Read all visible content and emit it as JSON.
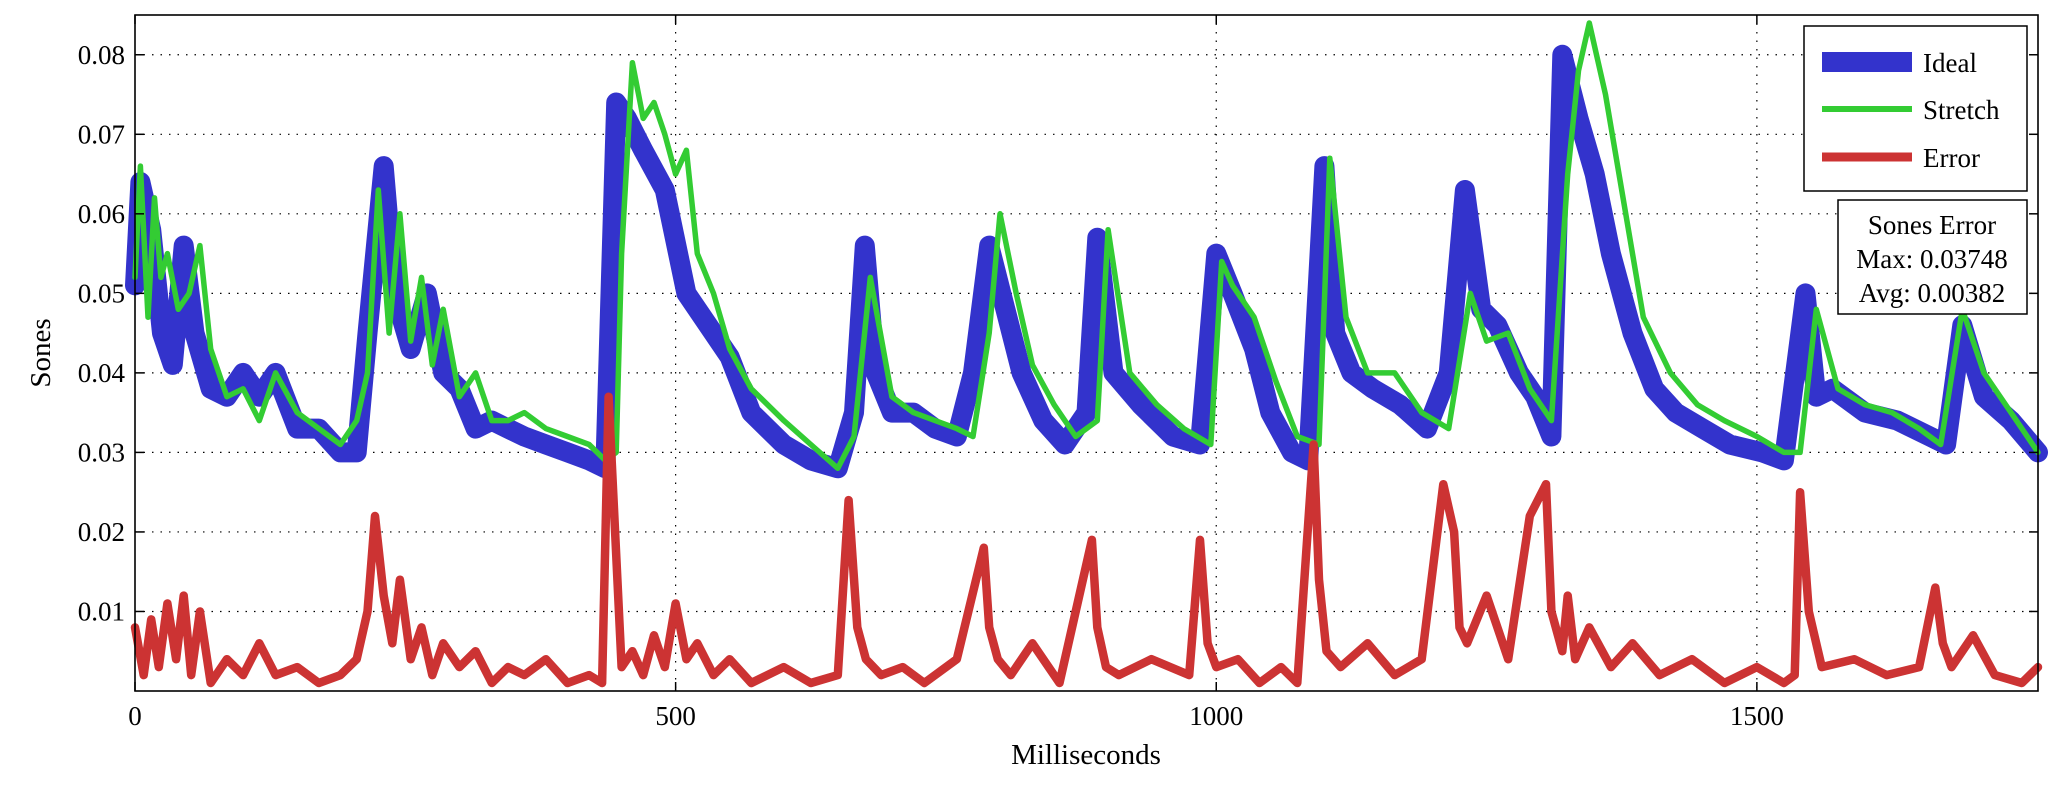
{
  "chart_data": {
    "type": "line",
    "xlabel": "Milliseconds",
    "ylabel": "Sones",
    "xlim": [
      0,
      1760
    ],
    "ylim": [
      0,
      0.085
    ],
    "x_ticks": [
      0,
      500,
      1000,
      1500
    ],
    "x_tick_labels": [
      "0",
      "500",
      "1000",
      "1500"
    ],
    "y_ticks": [
      0.01,
      0.02,
      0.03,
      0.04,
      0.05,
      0.06,
      0.07,
      0.08
    ],
    "y_tick_labels": [
      "0.01",
      "0.02",
      "0.03",
      "0.04",
      "0.05",
      "0.06",
      "0.07",
      "0.08"
    ],
    "grid": true,
    "legend_position": "top-right",
    "series": [
      {
        "name": "Ideal",
        "color": "#3333cc",
        "x": [
          0,
          5,
          15,
          25,
          35,
          45,
          55,
          70,
          85,
          100,
          115,
          130,
          150,
          170,
          190,
          205,
          215,
          230,
          240,
          255,
          270,
          285,
          300,
          315,
          330,
          345,
          360,
          380,
          400,
          420,
          435,
          445,
          455,
          470,
          490,
          510,
          530,
          550,
          570,
          600,
          625,
          650,
          665,
          675,
          685,
          700,
          720,
          740,
          760,
          775,
          790,
          805,
          820,
          840,
          860,
          880,
          890,
          905,
          930,
          960,
          985,
          1000,
          1015,
          1035,
          1050,
          1070,
          1085,
          1100,
          1110,
          1125,
          1145,
          1170,
          1195,
          1215,
          1230,
          1245,
          1260,
          1280,
          1295,
          1310,
          1320,
          1335,
          1350,
          1365,
          1385,
          1405,
          1425,
          1450,
          1475,
          1505,
          1525,
          1545,
          1555,
          1570,
          1600,
          1630,
          1660,
          1675,
          1690,
          1710,
          1735,
          1760
        ],
        "y": [
          0.051,
          0.064,
          0.058,
          0.045,
          0.041,
          0.056,
          0.045,
          0.038,
          0.037,
          0.04,
          0.037,
          0.04,
          0.033,
          0.033,
          0.03,
          0.03,
          0.045,
          0.066,
          0.05,
          0.043,
          0.05,
          0.04,
          0.038,
          0.033,
          0.034,
          0.033,
          0.032,
          0.031,
          0.03,
          0.029,
          0.028,
          0.074,
          0.072,
          0.068,
          0.063,
          0.05,
          0.046,
          0.042,
          0.035,
          0.031,
          0.029,
          0.028,
          0.035,
          0.056,
          0.04,
          0.035,
          0.035,
          0.033,
          0.032,
          0.04,
          0.056,
          0.048,
          0.04,
          0.034,
          0.031,
          0.035,
          0.057,
          0.04,
          0.036,
          0.032,
          0.031,
          0.055,
          0.05,
          0.043,
          0.035,
          0.03,
          0.029,
          0.066,
          0.045,
          0.04,
          0.038,
          0.036,
          0.033,
          0.04,
          0.063,
          0.048,
          0.046,
          0.04,
          0.037,
          0.032,
          0.08,
          0.072,
          0.065,
          0.055,
          0.045,
          0.038,
          0.035,
          0.033,
          0.031,
          0.03,
          0.029,
          0.05,
          0.037,
          0.038,
          0.035,
          0.034,
          0.032,
          0.031,
          0.046,
          0.037,
          0.034,
          0.03
        ]
      },
      {
        "name": "Stretch",
        "color": "#33cc33",
        "x": [
          0,
          5,
          12,
          18,
          24,
          30,
          40,
          50,
          60,
          70,
          85,
          100,
          115,
          130,
          150,
          170,
          190,
          205,
          215,
          225,
          235,
          245,
          255,
          265,
          275,
          285,
          300,
          315,
          330,
          345,
          360,
          380,
          400,
          420,
          435,
          445,
          450,
          460,
          470,
          480,
          490,
          500,
          510,
          520,
          535,
          550,
          570,
          600,
          625,
          650,
          665,
          680,
          700,
          720,
          740,
          760,
          775,
          790,
          800,
          815,
          830,
          850,
          870,
          890,
          900,
          920,
          945,
          970,
          995,
          1005,
          1015,
          1035,
          1055,
          1075,
          1095,
          1105,
          1120,
          1140,
          1165,
          1190,
          1215,
          1235,
          1250,
          1270,
          1290,
          1310,
          1325,
          1335,
          1345,
          1360,
          1375,
          1395,
          1420,
          1445,
          1470,
          1500,
          1525,
          1540,
          1555,
          1575,
          1600,
          1625,
          1650,
          1670,
          1690,
          1710,
          1735,
          1760
        ],
        "y": [
          0.052,
          0.066,
          0.047,
          0.062,
          0.052,
          0.055,
          0.048,
          0.05,
          0.056,
          0.043,
          0.037,
          0.038,
          0.034,
          0.04,
          0.035,
          0.033,
          0.031,
          0.034,
          0.04,
          0.063,
          0.045,
          0.06,
          0.044,
          0.052,
          0.041,
          0.048,
          0.037,
          0.04,
          0.034,
          0.034,
          0.035,
          0.033,
          0.032,
          0.031,
          0.029,
          0.03,
          0.055,
          0.079,
          0.072,
          0.074,
          0.07,
          0.065,
          0.068,
          0.055,
          0.05,
          0.043,
          0.038,
          0.034,
          0.031,
          0.028,
          0.032,
          0.052,
          0.037,
          0.035,
          0.034,
          0.033,
          0.032,
          0.045,
          0.06,
          0.05,
          0.041,
          0.036,
          0.032,
          0.034,
          0.058,
          0.04,
          0.036,
          0.033,
          0.031,
          0.054,
          0.051,
          0.047,
          0.039,
          0.032,
          0.031,
          0.067,
          0.047,
          0.04,
          0.04,
          0.035,
          0.033,
          0.05,
          0.044,
          0.045,
          0.038,
          0.034,
          0.065,
          0.078,
          0.084,
          0.075,
          0.063,
          0.047,
          0.04,
          0.036,
          0.034,
          0.032,
          0.03,
          0.03,
          0.048,
          0.038,
          0.036,
          0.035,
          0.033,
          0.031,
          0.048,
          0.04,
          0.035,
          0.03
        ]
      },
      {
        "name": "Error",
        "color": "#cc3333",
        "x": [
          0,
          8,
          15,
          22,
          30,
          38,
          45,
          52,
          60,
          70,
          85,
          100,
          115,
          130,
          150,
          170,
          190,
          205,
          215,
          222,
          230,
          238,
          245,
          255,
          265,
          275,
          285,
          300,
          315,
          330,
          345,
          360,
          380,
          400,
          420,
          432,
          438,
          444,
          450,
          460,
          470,
          480,
          490,
          500,
          510,
          520,
          535,
          550,
          570,
          600,
          625,
          650,
          660,
          668,
          676,
          690,
          710,
          730,
          760,
          785,
          790,
          798,
          810,
          830,
          855,
          885,
          890,
          898,
          910,
          940,
          975,
          985,
          992,
          1000,
          1020,
          1040,
          1060,
          1075,
          1090,
          1095,
          1102,
          1115,
          1140,
          1165,
          1190,
          1210,
          1220,
          1225,
          1232,
          1250,
          1270,
          1290,
          1305,
          1310,
          1320,
          1325,
          1332,
          1345,
          1365,
          1385,
          1410,
          1440,
          1470,
          1500,
          1525,
          1535,
          1540,
          1548,
          1560,
          1590,
          1620,
          1650,
          1665,
          1672,
          1680,
          1700,
          1720,
          1745,
          1760
        ],
        "y": [
          0.008,
          0.002,
          0.009,
          0.003,
          0.011,
          0.004,
          0.012,
          0.002,
          0.01,
          0.001,
          0.004,
          0.002,
          0.006,
          0.002,
          0.003,
          0.001,
          0.002,
          0.004,
          0.01,
          0.022,
          0.012,
          0.006,
          0.014,
          0.004,
          0.008,
          0.002,
          0.006,
          0.003,
          0.005,
          0.001,
          0.003,
          0.002,
          0.004,
          0.001,
          0.002,
          0.001,
          0.037,
          0.02,
          0.003,
          0.005,
          0.002,
          0.007,
          0.003,
          0.011,
          0.004,
          0.006,
          0.002,
          0.004,
          0.001,
          0.003,
          0.001,
          0.002,
          0.024,
          0.008,
          0.004,
          0.002,
          0.003,
          0.001,
          0.004,
          0.018,
          0.008,
          0.004,
          0.002,
          0.006,
          0.001,
          0.019,
          0.008,
          0.003,
          0.002,
          0.004,
          0.002,
          0.019,
          0.006,
          0.003,
          0.004,
          0.001,
          0.003,
          0.001,
          0.031,
          0.014,
          0.005,
          0.003,
          0.006,
          0.002,
          0.004,
          0.026,
          0.02,
          0.008,
          0.006,
          0.012,
          0.004,
          0.022,
          0.026,
          0.01,
          0.005,
          0.012,
          0.004,
          0.008,
          0.003,
          0.006,
          0.002,
          0.004,
          0.001,
          0.003,
          0.001,
          0.002,
          0.025,
          0.01,
          0.003,
          0.004,
          0.002,
          0.003,
          0.013,
          0.006,
          0.003,
          0.007,
          0.002,
          0.001,
          0.003
        ]
      }
    ],
    "annotation": {
      "title": "Sones Error",
      "lines": [
        "Max: 0.03748",
        "Avg: 0.00382"
      ]
    }
  }
}
